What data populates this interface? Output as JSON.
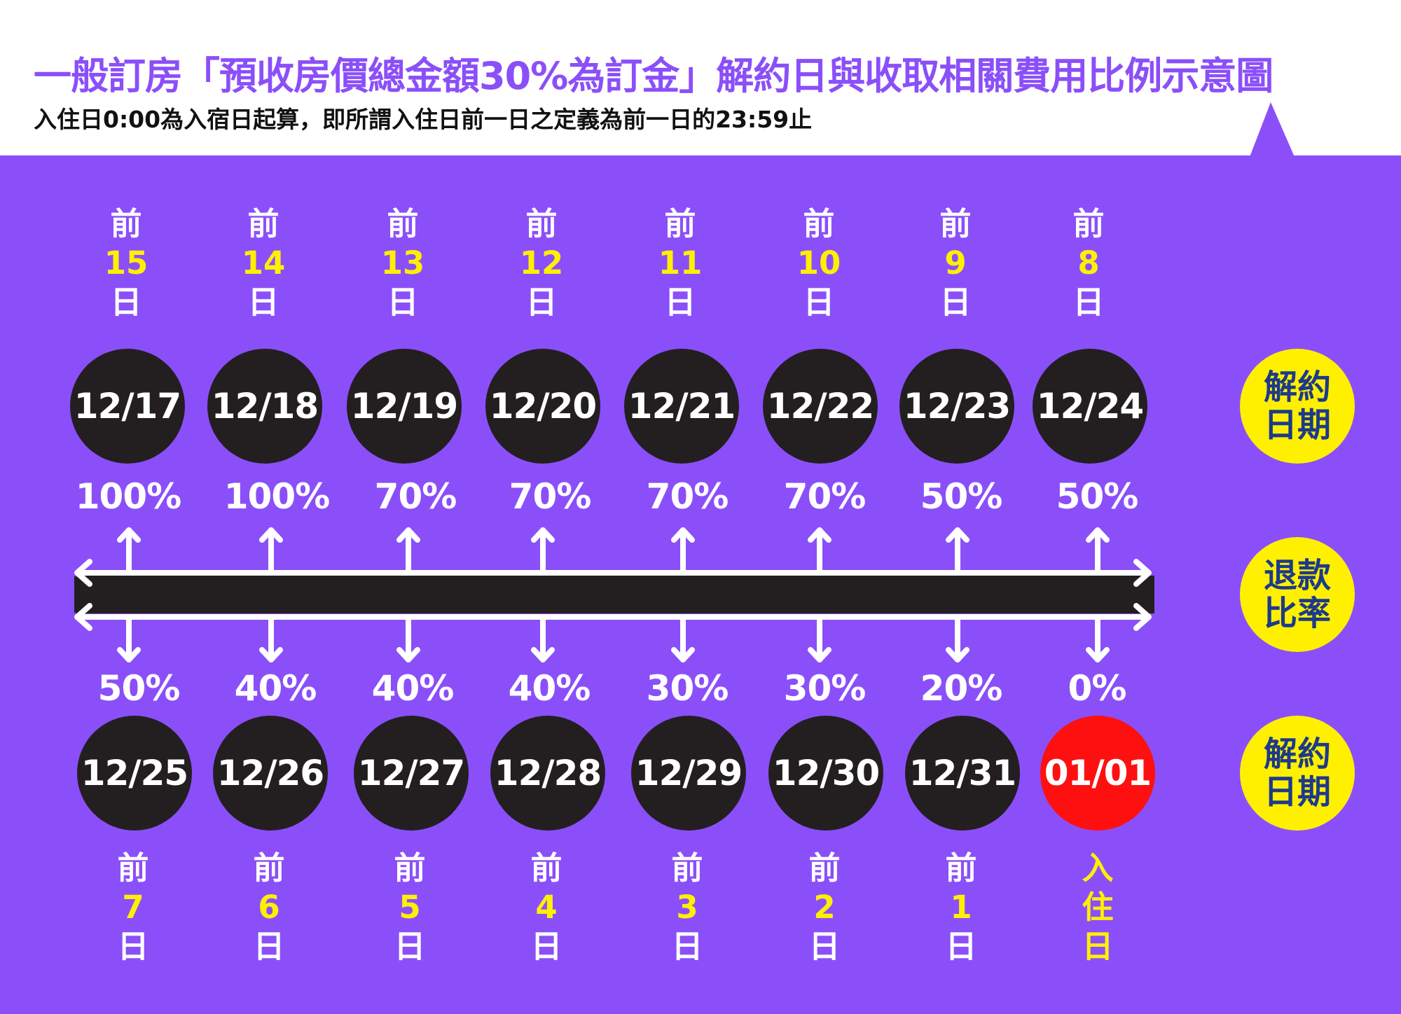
{
  "title": "一般訂房「預收房價總金額30%為訂金」解約日與收取相關費用比例示意圖",
  "subtitle": "入住日0:00為入宿日起算，即所謂入住日前一日之定義為前一日的23:59止",
  "badges": {
    "cancel_date_top": [
      "解約",
      "日期"
    ],
    "refund_rate": [
      "退款",
      "比率"
    ],
    "cancel_date_bottom": [
      "解約",
      "日期"
    ]
  },
  "top_row": [
    {
      "date": "12/17",
      "before": "前",
      "days": "15",
      "day_char": "日",
      "pct": "100%"
    },
    {
      "date": "12/18",
      "before": "前",
      "days": "14",
      "day_char": "日",
      "pct": "100%"
    },
    {
      "date": "12/19",
      "before": "前",
      "days": "13",
      "day_char": "日",
      "pct": "70%"
    },
    {
      "date": "12/20",
      "before": "前",
      "days": "12",
      "day_char": "日",
      "pct": "70%"
    },
    {
      "date": "12/21",
      "before": "前",
      "days": "11",
      "day_char": "日",
      "pct": "70%"
    },
    {
      "date": "12/22",
      "before": "前",
      "days": "10",
      "day_char": "日",
      "pct": "70%"
    },
    {
      "date": "12/23",
      "before": "前",
      "days": "9",
      "day_char": "日",
      "pct": "50%"
    },
    {
      "date": "12/24",
      "before": "前",
      "days": "8",
      "day_char": "日",
      "pct": "50%"
    }
  ],
  "bottom_row": [
    {
      "date": "12/25",
      "before": "前",
      "days": "7",
      "day_char": "日",
      "pct": "50%"
    },
    {
      "date": "12/26",
      "before": "前",
      "days": "6",
      "day_char": "日",
      "pct": "40%"
    },
    {
      "date": "12/27",
      "before": "前",
      "days": "5",
      "day_char": "日",
      "pct": "40%"
    },
    {
      "date": "12/28",
      "before": "前",
      "days": "4",
      "day_char": "日",
      "pct": "40%"
    },
    {
      "date": "12/29",
      "before": "前",
      "days": "3",
      "day_char": "日",
      "pct": "30%"
    },
    {
      "date": "12/30",
      "before": "前",
      "days": "2",
      "day_char": "日",
      "pct": "30%"
    },
    {
      "date": "12/31",
      "before": "前",
      "days": "1",
      "day_char": "日",
      "pct": "20%"
    },
    {
      "date": "01/01",
      "before": "入",
      "days": "住",
      "day_char": "日",
      "pct": "0%",
      "highlight": true
    }
  ],
  "colors": {
    "purple": "#8b4ff9",
    "circle": "#231f20",
    "highlight": "#ff1010",
    "yellow": "#fff000",
    "badge_text": "#1d3a8a"
  }
}
